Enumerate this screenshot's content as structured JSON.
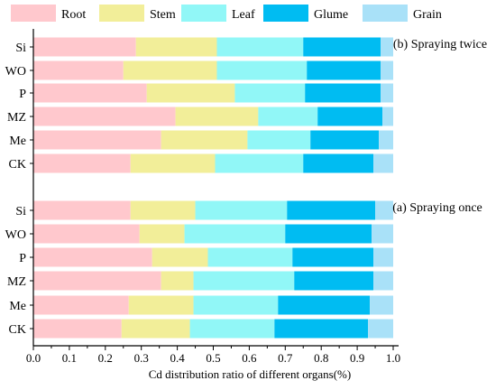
{
  "chart_data": {
    "type": "bar",
    "orientation": "horizontal",
    "stacked": true,
    "xlabel": "Cd distribution ratio of different organs(%)",
    "xlim": [
      0,
      1.0
    ],
    "xticks": [
      "0.0",
      "0.1",
      "0.2",
      "0.3",
      "0.4",
      "0.5",
      "0.6",
      "0.7",
      "0.8",
      "0.9",
      "1.0"
    ],
    "legend_position": "top",
    "grid": false,
    "series_names": [
      "Root",
      "Stem",
      "Leaf",
      "Glume",
      "Grain"
    ],
    "colors": [
      "#FFC8CD",
      "#F2EE99",
      "#91F7F7",
      "#00BCF2",
      "#A9E1F8"
    ],
    "panels": [
      {
        "label": "(b) Spraying twice",
        "categories": [
          "Si",
          "WO",
          "P",
          "MZ",
          "Me",
          "CK"
        ],
        "values": [
          [
            0.285,
            0.225,
            0.24,
            0.215,
            0.035
          ],
          [
            0.25,
            0.26,
            0.25,
            0.205,
            0.035
          ],
          [
            0.315,
            0.245,
            0.195,
            0.21,
            0.035
          ],
          [
            0.395,
            0.23,
            0.165,
            0.18,
            0.03
          ],
          [
            0.355,
            0.24,
            0.175,
            0.19,
            0.04
          ],
          [
            0.27,
            0.235,
            0.245,
            0.195,
            0.055
          ]
        ]
      },
      {
        "label": "(a) Spraying once",
        "categories": [
          "Si",
          "WO",
          "P",
          "MZ",
          "Me",
          "CK"
        ],
        "values": [
          [
            0.27,
            0.18,
            0.255,
            0.245,
            0.05
          ],
          [
            0.295,
            0.125,
            0.28,
            0.24,
            0.06
          ],
          [
            0.33,
            0.155,
            0.235,
            0.225,
            0.055
          ],
          [
            0.355,
            0.09,
            0.28,
            0.22,
            0.055
          ],
          [
            0.265,
            0.18,
            0.235,
            0.255,
            0.065
          ],
          [
            0.245,
            0.19,
            0.235,
            0.26,
            0.07
          ]
        ]
      }
    ]
  }
}
